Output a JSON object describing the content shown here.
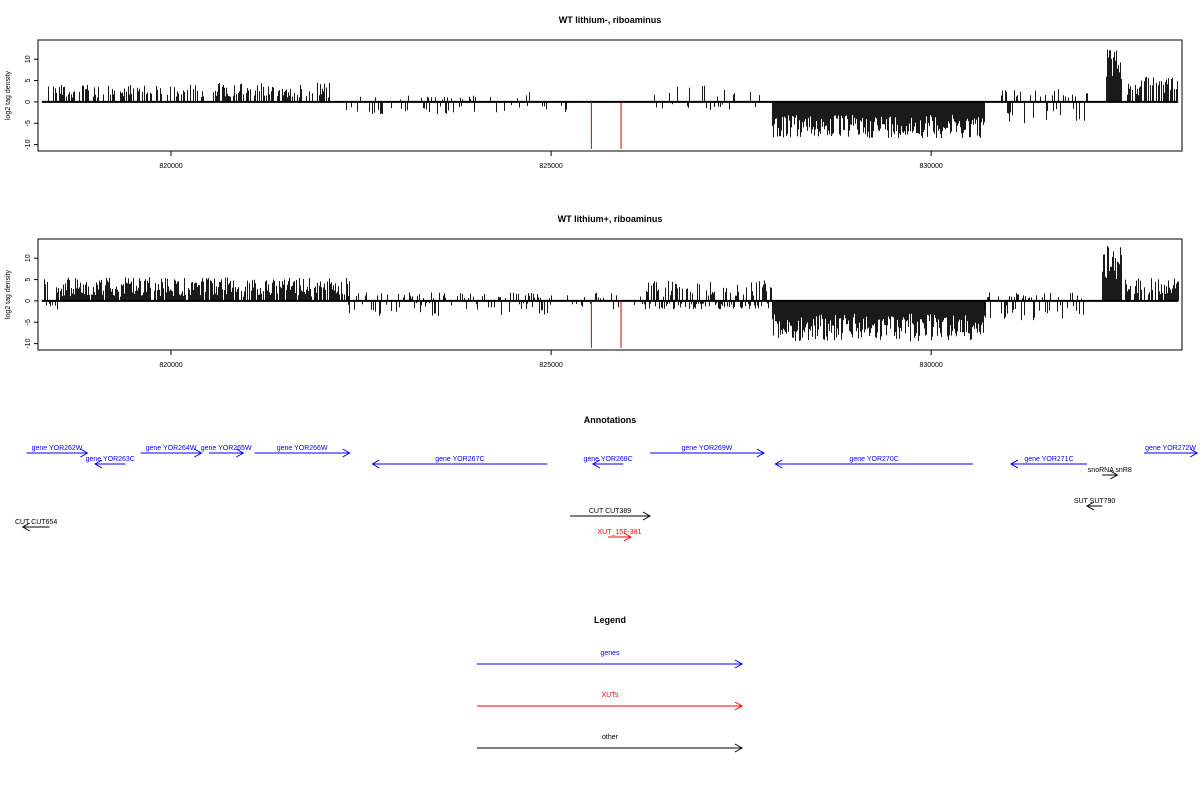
{
  "chart_data": [
    {
      "type": "bar",
      "title": "WT lithium-, riboaminus",
      "ylabel": "log2 tag density",
      "xlim": [
        818250,
        833300
      ],
      "ylim": [
        -11.5,
        14.5
      ],
      "y_ticks": [
        10,
        5,
        0,
        -5,
        -10
      ],
      "y_tick_labels": [
        "10",
        "5",
        "0",
        "-5",
        "-10"
      ],
      "x_ticks": [
        820000,
        825000,
        830000
      ],
      "x_tick_labels": [
        "820000",
        "825000",
        "830000"
      ],
      "grid": false,
      "regions": [
        {
          "from": 818300,
          "to": 818450,
          "density": 0.3,
          "pos_lo": 1.5,
          "pos_hi": 4.5,
          "neg_lo": 0,
          "neg_hi": 0
        },
        {
          "from": 818450,
          "to": 820500,
          "density": 0.5,
          "pos_lo": 1.0,
          "pos_hi": 4.0,
          "neg_lo": 0,
          "neg_hi": 0
        },
        {
          "from": 820500,
          "to": 822100,
          "density": 0.6,
          "pos_lo": 1.0,
          "pos_hi": 4.5,
          "neg_lo": 0,
          "neg_hi": 0
        },
        {
          "from": 822300,
          "to": 824000,
          "density": 0.3,
          "pos_lo": 0.5,
          "pos_hi": 1.5,
          "neg_lo": 1.0,
          "neg_hi": 3.0
        },
        {
          "from": 823900,
          "to": 825200,
          "density": 0.15,
          "pos_lo": 0.5,
          "pos_hi": 2.5,
          "neg_lo": 0.5,
          "neg_hi": 2.5
        },
        {
          "from": 826300,
          "to": 827800,
          "density": 0.25,
          "pos_lo": 1.0,
          "pos_hi": 4.0,
          "neg_lo": 0.5,
          "neg_hi": 2.0
        },
        {
          "from": 827900,
          "to": 830700,
          "density": 1.0,
          "pos_lo": 0,
          "pos_hi": 0,
          "neg_lo": 3.0,
          "neg_hi": 8.5
        },
        {
          "from": 830900,
          "to": 832050,
          "density": 0.4,
          "pos_lo": 1.0,
          "pos_hi": 3.0,
          "neg_lo": 1.5,
          "neg_hi": 5.0
        },
        {
          "from": 832300,
          "to": 832500,
          "density": 1.0,
          "pos_lo": 5.0,
          "pos_hi": 12.5,
          "neg_lo": 0,
          "neg_hi": 0
        },
        {
          "from": 832550,
          "to": 833250,
          "density": 0.7,
          "pos_lo": 1.5,
          "pos_hi": 6.0,
          "neg_lo": 0,
          "neg_hi": 0
        }
      ],
      "red_marks": [
        {
          "x": 825530,
          "y": -11
        },
        {
          "x": 825920,
          "y": -11
        }
      ]
    },
    {
      "type": "bar",
      "title": "WT lithium+, riboaminus",
      "ylabel": "log2 tag density",
      "xlim": [
        818250,
        833300
      ],
      "ylim": [
        -11.5,
        14.5
      ],
      "y_ticks": [
        10,
        5,
        0,
        -5,
        -10
      ],
      "y_tick_labels": [
        "10",
        "5",
        "0",
        "-5",
        "-10"
      ],
      "x_ticks": [
        820000,
        825000,
        830000
      ],
      "x_tick_labels": [
        "820000",
        "825000",
        "830000"
      ],
      "grid": false,
      "regions": [
        {
          "from": 818300,
          "to": 818500,
          "density": 0.5,
          "pos_lo": 2.0,
          "pos_hi": 5.5,
          "neg_lo": 0.5,
          "neg_hi": 2.0
        },
        {
          "from": 818500,
          "to": 822350,
          "density": 0.9,
          "pos_lo": 1.0,
          "pos_hi": 5.5,
          "neg_lo": 0,
          "neg_hi": 0
        },
        {
          "from": 822300,
          "to": 825000,
          "density": 0.5,
          "pos_lo": 0.5,
          "pos_hi": 2.0,
          "neg_lo": 0.5,
          "neg_hi": 3.5
        },
        {
          "from": 825000,
          "to": 826200,
          "density": 0.2,
          "pos_lo": 0.5,
          "pos_hi": 2.0,
          "neg_lo": 0.5,
          "neg_hi": 2.0
        },
        {
          "from": 826200,
          "to": 827900,
          "density": 0.9,
          "pos_lo": 1.0,
          "pos_hi": 5.0,
          "neg_lo": 0.5,
          "neg_hi": 2.0
        },
        {
          "from": 827900,
          "to": 830700,
          "density": 1.0,
          "pos_lo": 0,
          "pos_hi": 0,
          "neg_lo": 3.0,
          "neg_hi": 9.5
        },
        {
          "from": 830700,
          "to": 832000,
          "density": 0.5,
          "pos_lo": 0.5,
          "pos_hi": 2.0,
          "neg_lo": 1.0,
          "neg_hi": 4.5
        },
        {
          "from": 832250,
          "to": 832500,
          "density": 1.0,
          "pos_lo": 5.0,
          "pos_hi": 13.0,
          "neg_lo": 0,
          "neg_hi": 0
        },
        {
          "from": 832550,
          "to": 833250,
          "density": 0.7,
          "pos_lo": 1.5,
          "pos_hi": 5.5,
          "neg_lo": 0,
          "neg_hi": 0
        }
      ],
      "red_marks": [
        {
          "x": 825530,
          "y": -11
        },
        {
          "x": 825920,
          "y": -11
        }
      ]
    },
    {
      "type": "annotation_track",
      "title": "Annotations",
      "xlim": [
        818250,
        833300
      ],
      "features": [
        {
          "label": "gene YOR262W",
          "start": 818100,
          "end": 818900,
          "strand": "+",
          "class": "gene",
          "row": 0
        },
        {
          "label": "gene YOR263C",
          "start": 819000,
          "end": 819400,
          "strand": "-",
          "class": "gene",
          "row": 1
        },
        {
          "label": "gene YOR264W",
          "start": 819600,
          "end": 820400,
          "strand": "+",
          "class": "gene",
          "row": 0
        },
        {
          "label": "gene YOR265W",
          "start": 820500,
          "end": 820950,
          "strand": "+",
          "class": "gene",
          "row": 0
        },
        {
          "label": "gene YOR266W",
          "start": 821100,
          "end": 822350,
          "strand": "+",
          "class": "gene",
          "row": 0
        },
        {
          "label": "gene YOR267C",
          "start": 822650,
          "end": 824950,
          "strand": "-",
          "class": "gene",
          "row": 1
        },
        {
          "label": "gene YOR268C",
          "start": 825550,
          "end": 825950,
          "strand": "-",
          "class": "gene",
          "row": 1
        },
        {
          "label": "gene YOR269W",
          "start": 826300,
          "end": 827800,
          "strand": "+",
          "class": "gene",
          "row": 0
        },
        {
          "label": "gene YOR270C",
          "start": 827950,
          "end": 830550,
          "strand": "-",
          "class": "gene",
          "row": 1
        },
        {
          "label": "gene YOR271C",
          "start": 831050,
          "end": 832050,
          "strand": "-",
          "class": "gene",
          "row": 1
        },
        {
          "label": "gene YOR272W",
          "start": 832800,
          "end": 833500,
          "strand": "+",
          "class": "gene",
          "row": 0
        },
        {
          "label": "snoRNA snR8",
          "start": 832250,
          "end": 832450,
          "strand": "+",
          "class": "other",
          "row": 2
        },
        {
          "label": "SUT SUT790",
          "start": 832050,
          "end": 832250,
          "strand": "-",
          "class": "other",
          "row": 3
        },
        {
          "label": "CUT CUT654",
          "start": 818050,
          "end": 818400,
          "strand": "-",
          "class": "other",
          "row": 4
        },
        {
          "label": "CUT CUT389",
          "start": 825250,
          "end": 826300,
          "strand": "+",
          "class": "other",
          "row": 5
        },
        {
          "label": "XUT_15F-381",
          "start": 825750,
          "end": 826050,
          "strand": "+",
          "class": "xut",
          "row": 6
        }
      ]
    }
  ],
  "legend": {
    "title": "Legend",
    "items": [
      {
        "label": "genes",
        "color": "#0000ff"
      },
      {
        "label": "XUTs",
        "color": "#ff0000"
      },
      {
        "label": "other",
        "color": "#000000"
      }
    ]
  },
  "colors": {
    "gene": "#0000ff",
    "xut": "#ff0000",
    "other": "#000000",
    "red_mark": "#cc0000",
    "bars": "#000000"
  }
}
